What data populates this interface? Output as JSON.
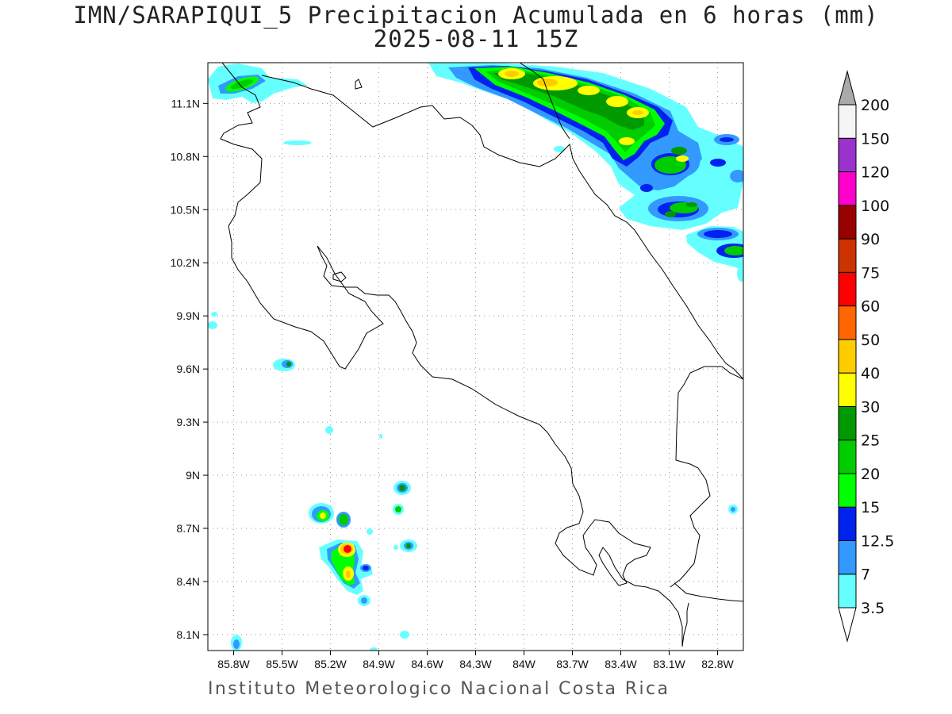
{
  "title": {
    "line1": "IMN/SARAPIQUI_5 Precipitacion Acumulada en 6 horas (mm)",
    "line2": "2025-08-11 15Z"
  },
  "footer": "Instituto Meteorologico Nacional Costa Rica",
  "map": {
    "lon_range": [
      -85.96,
      -82.64
    ],
    "lat_range": [
      8.01,
      11.33
    ],
    "lat_ticks": [
      {
        "value": 11.1,
        "label": "11.1N"
      },
      {
        "value": 10.8,
        "label": "10.8N"
      },
      {
        "value": 10.5,
        "label": "10.5N"
      },
      {
        "value": 10.2,
        "label": "10.2N"
      },
      {
        "value": 9.9,
        "label": "9.9N"
      },
      {
        "value": 9.6,
        "label": "9.6N"
      },
      {
        "value": 9.3,
        "label": "9.3N"
      },
      {
        "value": 9.0,
        "label": "9N"
      },
      {
        "value": 8.7,
        "label": "8.7N"
      },
      {
        "value": 8.4,
        "label": "8.4N"
      },
      {
        "value": 8.1,
        "label": "8.1N"
      }
    ],
    "lon_ticks": [
      {
        "value": -85.8,
        "label": "85.8W"
      },
      {
        "value": -85.5,
        "label": "85.5W"
      },
      {
        "value": -85.2,
        "label": "85.2W"
      },
      {
        "value": -84.9,
        "label": "84.9W"
      },
      {
        "value": -84.6,
        "label": "84.6W"
      },
      {
        "value": -84.3,
        "label": "84.3W"
      },
      {
        "value": -84.0,
        "label": "84W"
      },
      {
        "value": -83.7,
        "label": "83.7W"
      },
      {
        "value": -83.4,
        "label": "83.4W"
      },
      {
        "value": -83.1,
        "label": "83.1W"
      },
      {
        "value": -82.8,
        "label": "82.8W"
      }
    ],
    "grid": true
  },
  "colorbar": {
    "levels": [
      {
        "label": "3.5",
        "color": "#66ffff"
      },
      {
        "label": "7",
        "color": "#3399ff"
      },
      {
        "label": "12.5",
        "color": "#0022ee"
      },
      {
        "label": "15",
        "color": "#00ff00"
      },
      {
        "label": "20",
        "color": "#00cc00"
      },
      {
        "label": "25",
        "color": "#009900"
      },
      {
        "label": "30",
        "color": "#ffff00"
      },
      {
        "label": "40",
        "color": "#ffcc00"
      },
      {
        "label": "50",
        "color": "#ff6600"
      },
      {
        "label": "60",
        "color": "#ff0000"
      },
      {
        "label": "75",
        "color": "#cc3300"
      },
      {
        "label": "90",
        "color": "#990000"
      },
      {
        "label": "100",
        "color": "#ff00cc"
      },
      {
        "label": "120",
        "color": "#9933cc"
      },
      {
        "label": "150",
        "color": "#f5f5f5"
      },
      {
        "label": "200",
        "color": "#aaaaaa"
      }
    ]
  }
}
